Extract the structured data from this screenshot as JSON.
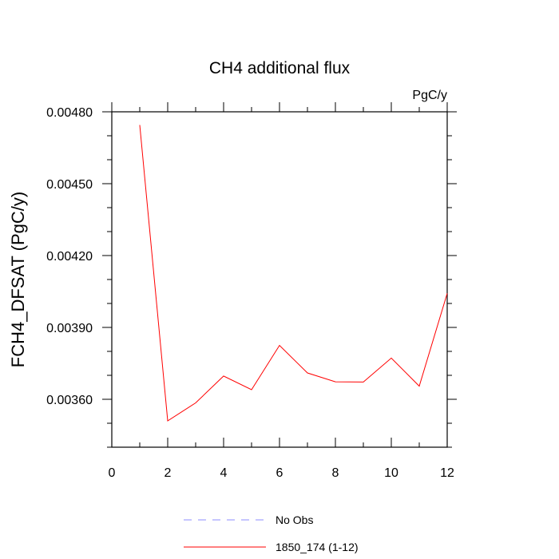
{
  "chart_data": {
    "type": "line",
    "title": "CH4 additional flux",
    "units_label": "PgC/y",
    "ylabel": "FCH4_DFSAT  (PgC/y)",
    "xlabel": "",
    "xlim": [
      0,
      12
    ],
    "ylim": [
      0.0034,
      0.0048
    ],
    "x_ticks": [
      0,
      2,
      4,
      6,
      8,
      10,
      12
    ],
    "y_ticks": [
      0.0036,
      0.0039,
      0.0042,
      0.0045,
      0.0048
    ],
    "y_tick_labels": [
      "0.00360",
      "0.00390",
      "0.00420",
      "0.00450",
      "0.00480"
    ],
    "y_minor_step": 0.0001,
    "x_minor_step": 1,
    "grid": false,
    "legend_position": "bottom",
    "series": [
      {
        "name": "No Obs",
        "color": "#8c8cff",
        "dash": "dashed",
        "x": [],
        "values": []
      },
      {
        "name": "1850_174 (1-12)",
        "color": "#ff0000",
        "dash": "solid",
        "x": [
          1,
          2,
          3,
          4,
          5,
          6,
          7,
          8,
          9,
          10,
          11,
          12
        ],
        "values": [
          0.004745,
          0.00351,
          0.003585,
          0.003697,
          0.00364,
          0.003825,
          0.00371,
          0.003673,
          0.003672,
          0.003772,
          0.003655,
          0.004042
        ]
      }
    ]
  }
}
